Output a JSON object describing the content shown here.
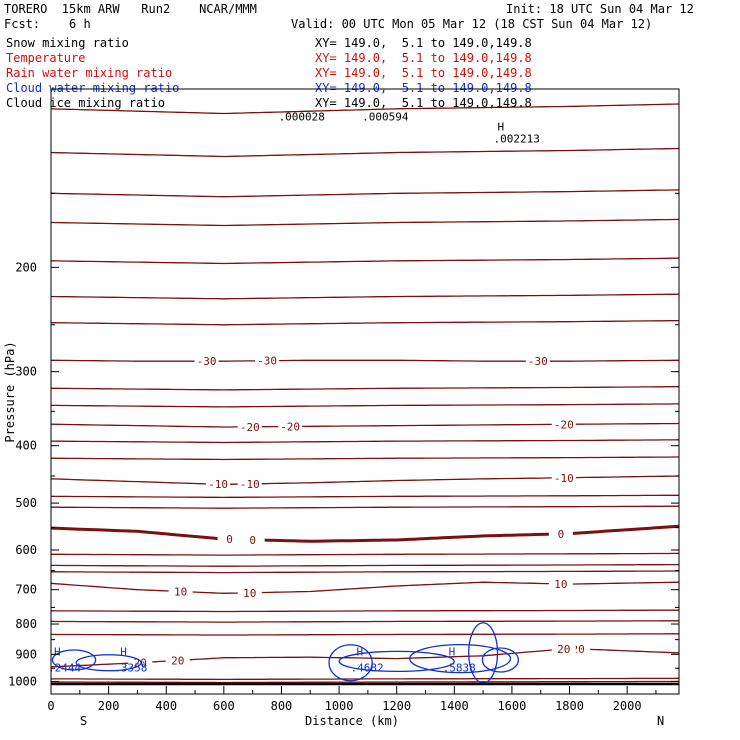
{
  "header": {
    "model_line": "TORERO  15km ARW   Run2    NCAR/MMM",
    "fcst_line": "Fcst:    6 h",
    "init_line": "Init: 18 UTC Sun 04 Mar 12",
    "valid_line": "Valid: 00 UTC Mon 05 Mar 12 (18 CST Sun 04 Mar 12)"
  },
  "legend": [
    {
      "label": "Snow mixing ratio",
      "range": "XY= 149.0,  5.1 to 149.0,149.8",
      "color": "#000000"
    },
    {
      "label": "Temperature",
      "range": "XY= 149.0,  5.1 to 149.0,149.8",
      "color": "#d01010"
    },
    {
      "label": "Rain water mixing ratio",
      "range": "XY= 149.0,  5.1 to 149.0,149.8",
      "color": "#d01010"
    },
    {
      "label": "Cloud water mixing ratio",
      "range": "XY= 149.0,  5.1 to 149.0,149.8",
      "color": "#1030d0"
    },
    {
      "label": "Cloud ice mixing ratio",
      "range": "XY= 149.0,  5.1 to 149.0,149.8",
      "color": "#000000"
    }
  ],
  "chart_data": {
    "type": "cross-section contour",
    "xlabel": "Distance (km)",
    "ylabel": "Pressure (hPa)",
    "xlim": [
      0,
      2180
    ],
    "ylim": [
      1050,
      100
    ],
    "x_ticks": [
      0,
      200,
      400,
      600,
      800,
      1000,
      1200,
      1400,
      1600,
      1800,
      2000
    ],
    "y_ticks": [
      200,
      300,
      400,
      500,
      600,
      700,
      800,
      900,
      1000
    ],
    "x_end_labels": {
      "left": "S",
      "right": "N"
    },
    "temperature_contours": [
      {
        "level": -30,
        "pressure": [
          287,
          288,
          288,
          287,
          287,
          288,
          288,
          287
        ],
        "x": [
          0,
          300,
          600,
          900,
          1200,
          1500,
          1800,
          2180
        ],
        "labels": [
          {
            "x": 540,
            "text": "-30"
          },
          {
            "x": 750,
            "text": "-30"
          },
          {
            "x": 1690,
            "text": "-30"
          }
        ]
      },
      {
        "level": -20,
        "pressure": [
          368,
          370,
          372,
          371,
          370,
          369,
          368,
          367
        ],
        "x": [
          0,
          300,
          600,
          900,
          1200,
          1500,
          1800,
          2180
        ],
        "labels": [
          {
            "x": 690,
            "text": "-20"
          },
          {
            "x": 830,
            "text": "-20"
          },
          {
            "x": 1780,
            "text": "-20"
          }
        ]
      },
      {
        "level": -10,
        "pressure": [
          455,
          460,
          465,
          462,
          458,
          455,
          453,
          450
        ],
        "x": [
          0,
          300,
          600,
          900,
          1200,
          1500,
          1800,
          2180
        ],
        "labels": [
          {
            "x": 580,
            "text": "-10"
          },
          {
            "x": 690,
            "text": "-10"
          },
          {
            "x": 1780,
            "text": "-10"
          }
        ]
      },
      {
        "level": 0,
        "pressure": [
          551,
          558,
          575,
          580,
          577,
          568,
          563,
          547
        ],
        "x": [
          0,
          300,
          600,
          900,
          1200,
          1500,
          1800,
          2180
        ],
        "labels": [
          {
            "x": 620,
            "text": "0"
          },
          {
            "x": 700,
            "text": "0"
          },
          {
            "x": 1770,
            "text": "0"
          }
        ],
        "bold": true
      },
      {
        "level": 10,
        "pressure": [
          683,
          700,
          710,
          705,
          690,
          680,
          685,
          680
        ],
        "x": [
          0,
          300,
          600,
          900,
          1200,
          1500,
          1800,
          2180
        ],
        "labels": [
          {
            "x": 450,
            "text": "10"
          },
          {
            "x": 690,
            "text": "10"
          },
          {
            "x": 1770,
            "text": "10"
          }
        ]
      },
      {
        "level": 20,
        "pressure": [
          945,
          930,
          912,
          910,
          915,
          905,
          880,
          895
        ],
        "x": [
          0,
          300,
          600,
          900,
          1200,
          1500,
          1800,
          2180
        ],
        "labels": [
          {
            "x": 310,
            "text": "20"
          },
          {
            "x": 440,
            "text": "20"
          },
          {
            "x": 1830,
            "text": "20"
          },
          {
            "x": 1780,
            "text": "20"
          }
        ]
      }
    ],
    "cloud_water_extrema": [
      {
        "x": 0,
        "label": "H",
        "value": ".2444"
      },
      {
        "x": 230,
        "label": "H",
        "value": ".3358"
      },
      {
        "x": 1050,
        "label": "H",
        "value": ".4682"
      },
      {
        "x": 1370,
        "label": "H",
        "value": ".5838"
      }
    ],
    "snow_annotations": [
      {
        "x": 790,
        "value": ".000028"
      },
      {
        "x": 1080,
        "value": ".000594"
      },
      {
        "x": 1550,
        "label": "H",
        "value": ".002213"
      }
    ],
    "surface_pressure": 1010
  }
}
